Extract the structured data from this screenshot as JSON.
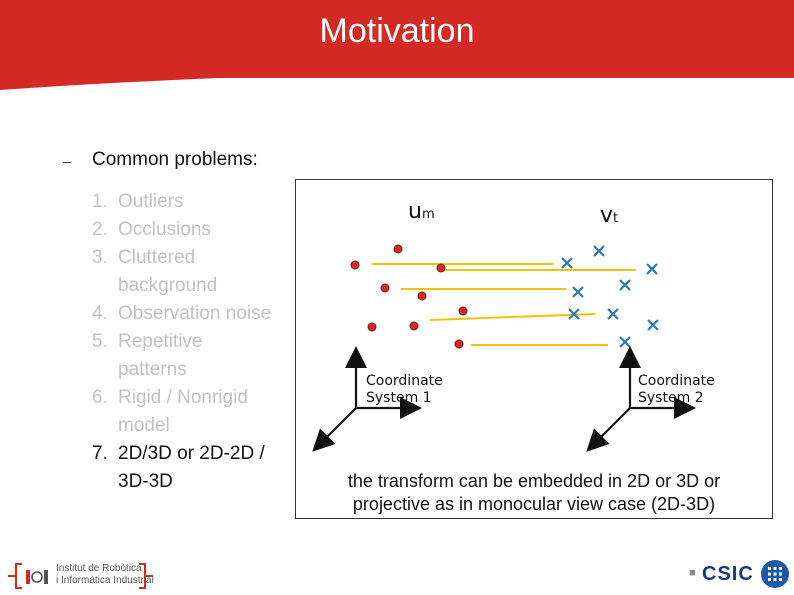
{
  "slide": {
    "title": "Motivation",
    "bullet": "Common problems:",
    "bullet_marker": "–",
    "problems": [
      {
        "num": "1.",
        "text": "Outliers"
      },
      {
        "num": "2.",
        "text": "Occlusions"
      },
      {
        "num": "3.",
        "text": "Cluttered background"
      },
      {
        "num": "4.",
        "text": "Observation noise"
      },
      {
        "num": "5.",
        "text": "Repetitive patterns"
      },
      {
        "num": "6.",
        "text": "Rigid / Nonrigid model"
      },
      {
        "num": "7.",
        "text": "2D/3D or 2D-2D / 3D-3D"
      }
    ]
  },
  "figure": {
    "label_u": "u",
    "label_u_sub": "m",
    "label_v": "v",
    "label_v_sub": "t",
    "coord1_line1": "Coordinate",
    "coord1_line2": "System 1",
    "coord2_line1": "Coordinate",
    "coord2_line2": "System 2",
    "caption_line1": "the transform can be embedded in 2D or 3D or",
    "caption_line2": "projective as in monocular view case (2D-3D)"
  },
  "footer": {
    "institute_line1": "Institut de Robòtica",
    "institute_line2": "i Informàtica Industrial",
    "logo_left": "IRI",
    "logo_right": "CSIC"
  },
  "colors": {
    "header_red": "#d42a26",
    "point_red": "#d42a26",
    "cross_blue": "#2a7ab8",
    "match_line": "#f2c200"
  }
}
